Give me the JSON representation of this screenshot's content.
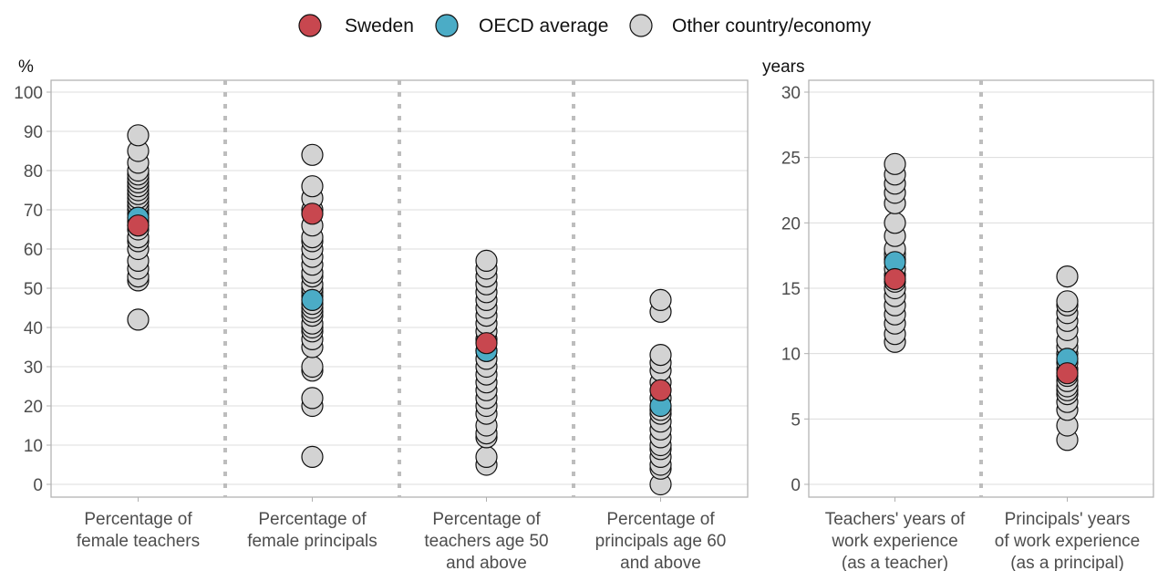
{
  "legend": [
    {
      "label": "Sweden",
      "color": "#c8474f"
    },
    {
      "label": "OECD average",
      "color": "#4bacc6"
    },
    {
      "label": "Other country/economy",
      "color": "#d3d3d3"
    }
  ],
  "chart_data": [
    {
      "type": "scatter",
      "ylabel": "%",
      "ylim": [
        0,
        100
      ],
      "yticks": [
        0,
        10,
        20,
        30,
        40,
        50,
        60,
        70,
        80,
        90,
        100
      ],
      "grid": true,
      "categories": [
        [
          "Percentage of",
          "female teachers"
        ],
        [
          "Percentage of",
          "female principals"
        ],
        [
          "Percentage of",
          "teachers age 50",
          "and above"
        ],
        [
          "Percentage of",
          "principals age 60",
          "and above"
        ]
      ],
      "series": [
        {
          "name": "Other country/economy",
          "values": [
            [
              42,
              52,
              53,
              55,
              57,
              60,
              62,
              63,
              65,
              66,
              67,
              69,
              70,
              71,
              72,
              73,
              74,
              75,
              76,
              77,
              78,
              79,
              80,
              82,
              85,
              89
            ],
            [
              7,
              20,
              22,
              29,
              30,
              35,
              37,
              39,
              40,
              41,
              43,
              44,
              45,
              46,
              48,
              49,
              50,
              51,
              53,
              54,
              56,
              58,
              60,
              62,
              63,
              66,
              70,
              73,
              76,
              84
            ],
            [
              5,
              7,
              12,
              13,
              15,
              18,
              20,
              22,
              24,
              26,
              28,
              30,
              32,
              34,
              37,
              39,
              41,
              43,
              45,
              47,
              49,
              51,
              53,
              55,
              57
            ],
            [
              0,
              4,
              5,
              7,
              9,
              10,
              12,
              14,
              16,
              18,
              19,
              22,
              26,
              29,
              31,
              33,
              44,
              47
            ]
          ]
        },
        {
          "name": "OECD average",
          "values": [
            68,
            47,
            34,
            20
          ]
        },
        {
          "name": "Sweden",
          "values": [
            66,
            69,
            36,
            24
          ]
        }
      ]
    },
    {
      "type": "scatter",
      "ylabel": "years",
      "ylim": [
        0,
        30
      ],
      "yticks": [
        0,
        5,
        10,
        15,
        20,
        25,
        30
      ],
      "grid": true,
      "categories": [
        [
          "Teachers' years of",
          "work experience",
          "(as a teacher)"
        ],
        [
          "Principals' years",
          "of work experience",
          "(as a principal)"
        ]
      ],
      "series": [
        {
          "name": "Other country/economy",
          "values": [
            [
              10.9,
              11.5,
              12.3,
              13.0,
              13.7,
              14.4,
              15.0,
              15.5,
              16.0,
              16.5,
              17.2,
              17.6,
              18.0,
              19.0,
              20.0,
              21.5,
              22.3,
              23.0,
              23.7,
              24.5
            ],
            [
              3.4,
              4.5,
              5.7,
              6.3,
              6.9,
              7.2,
              7.5,
              7.9,
              8.3,
              8.8,
              9.3,
              10.0,
              10.5,
              11.0,
              11.8,
              12.5,
              13.1,
              13.7,
              14.0,
              15.9
            ]
          ]
        },
        {
          "name": "OECD average",
          "values": [
            17.0,
            9.6
          ]
        },
        {
          "name": "Sweden",
          "values": [
            15.7,
            8.5
          ]
        }
      ]
    }
  ]
}
